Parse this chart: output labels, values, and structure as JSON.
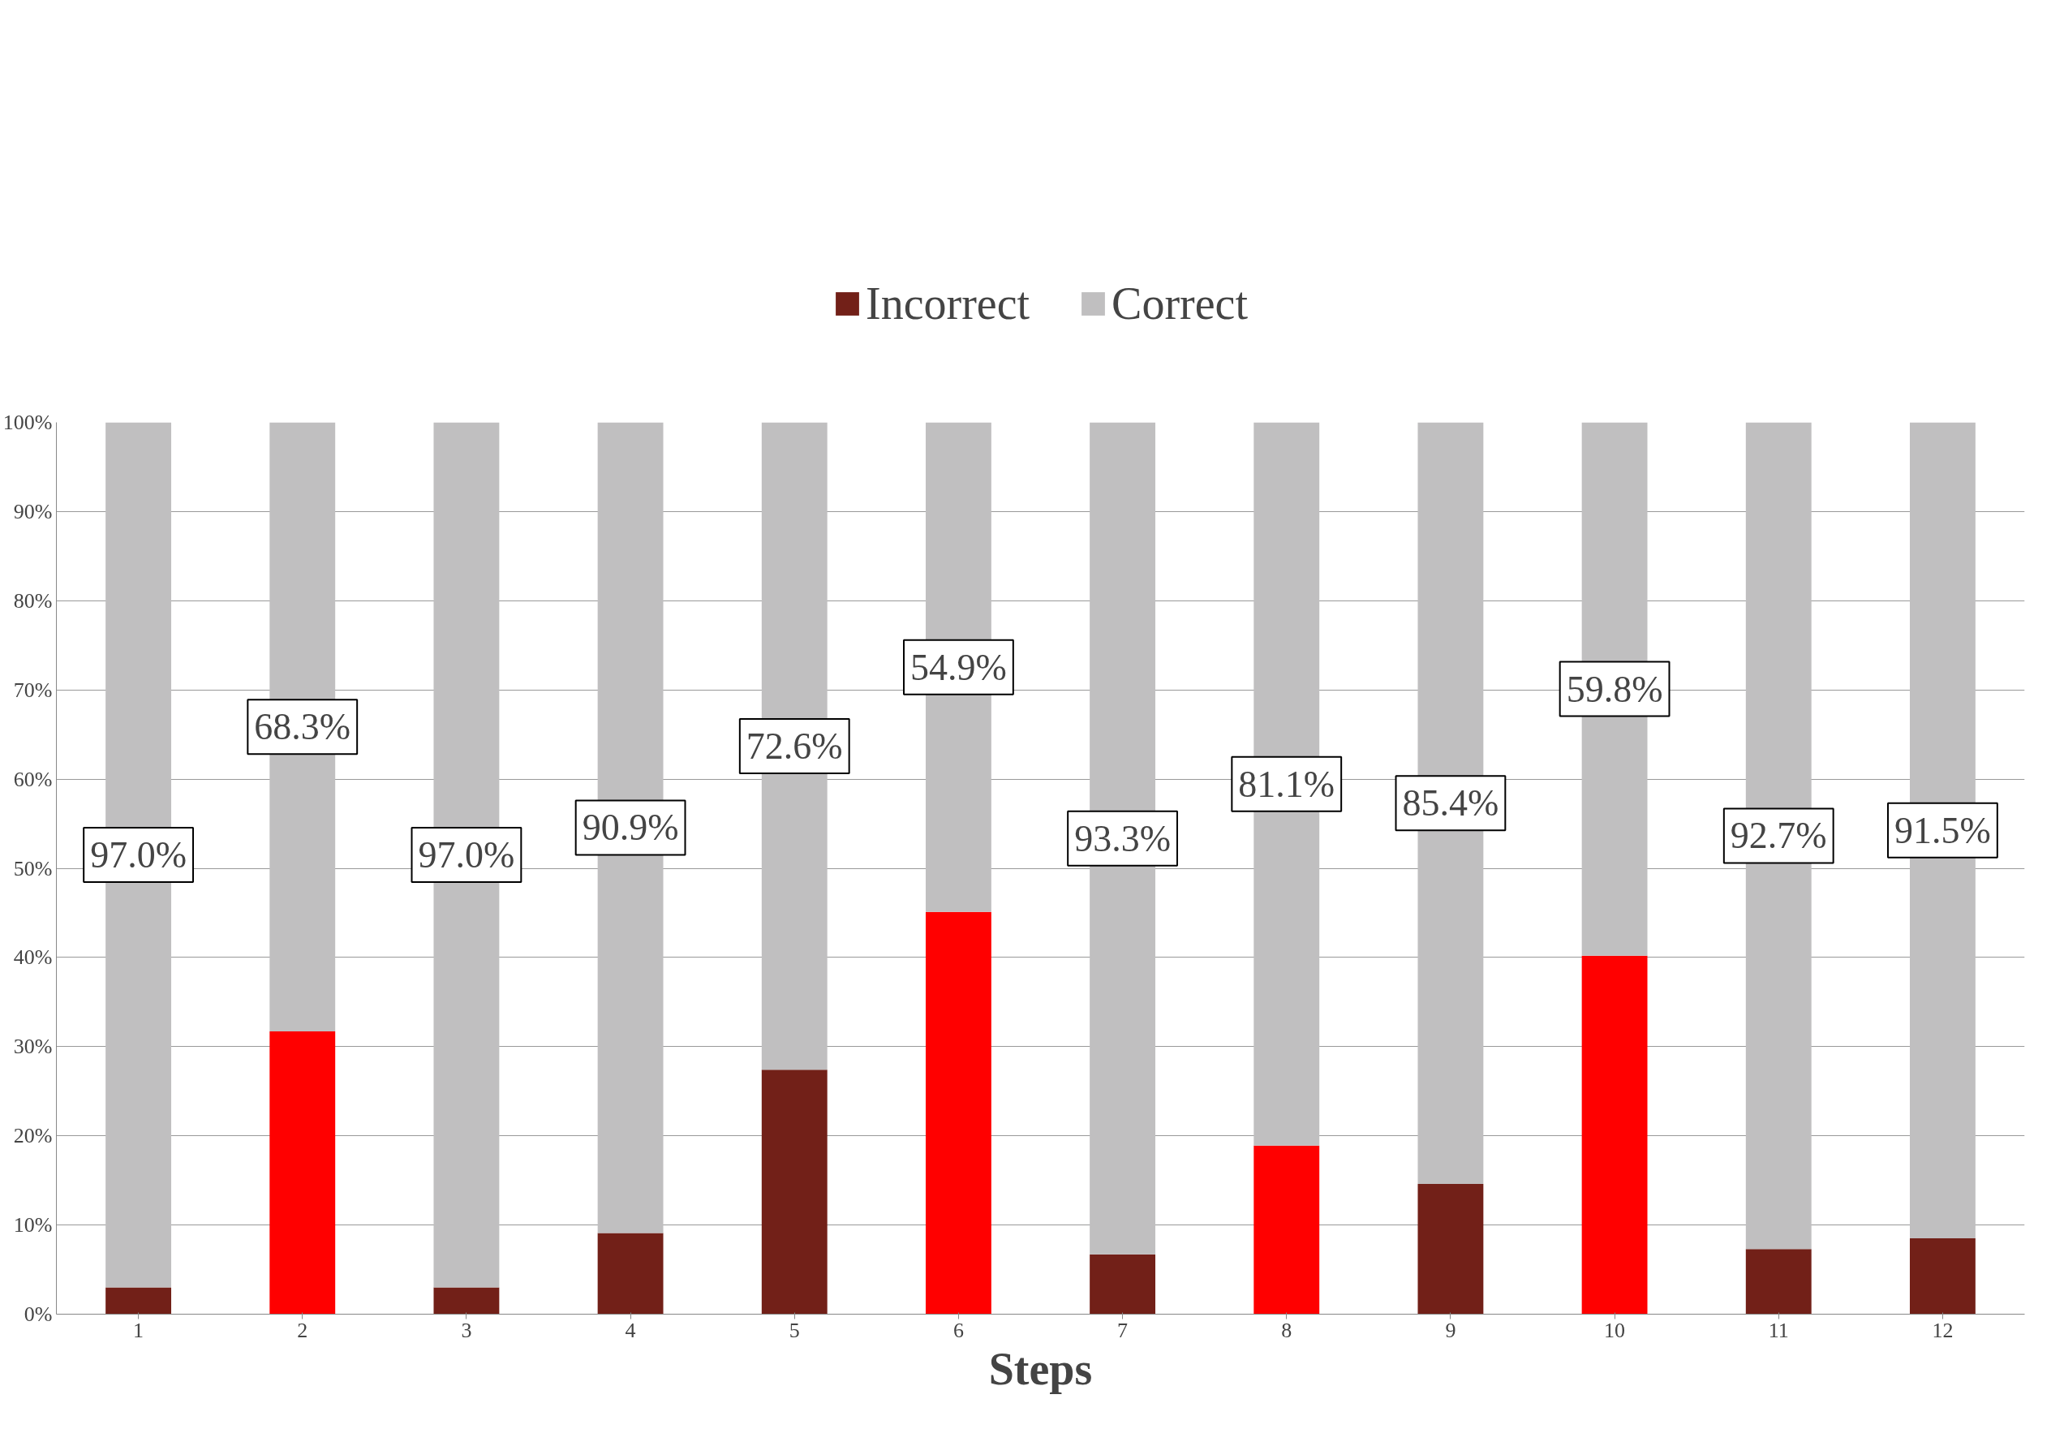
{
  "chart_data": {
    "type": "bar",
    "stacked": true,
    "xlabel": "Steps",
    "categories": [
      "1",
      "2",
      "3",
      "4",
      "5",
      "6",
      "7",
      "8",
      "9",
      "10",
      "11",
      "12"
    ],
    "series": [
      {
        "name": "Incorrect",
        "color": "#722018",
        "colors": [
          "#722018",
          "#ff0000",
          "#722018",
          "#722018",
          "#722018",
          "#ff0000",
          "#722018",
          "#ff0000",
          "#722018",
          "#ff0000",
          "#722018",
          "#722018"
        ],
        "values": [
          3.0,
          31.7,
          3.0,
          9.1,
          27.4,
          45.1,
          6.7,
          18.9,
          14.6,
          40.2,
          7.3,
          8.5
        ]
      },
      {
        "name": "Correct",
        "color": "#c0bfc0",
        "values": [
          97.0,
          68.3,
          97.0,
          90.9,
          72.6,
          54.9,
          93.3,
          81.1,
          85.4,
          59.8,
          92.7,
          91.5
        ],
        "value_labels": [
          "97.0%",
          "68.3%",
          "97.0%",
          "90.9%",
          "72.6%",
          "54.9%",
          "93.3%",
          "81.1%",
          "85.4%",
          "59.8%",
          "92.7%",
          "91.5%"
        ]
      }
    ],
    "ylim": [
      0,
      100
    ],
    "yticks": [
      {
        "value": 0,
        "label": "0%"
      },
      {
        "value": 10,
        "label": "10%"
      },
      {
        "value": 20,
        "label": "20%"
      },
      {
        "value": 30,
        "label": "30%"
      },
      {
        "value": 40,
        "label": "40%"
      },
      {
        "value": 50,
        "label": "50%"
      },
      {
        "value": 60,
        "label": "60%"
      },
      {
        "value": 70,
        "label": "70%"
      },
      {
        "value": 80,
        "label": "80%"
      },
      {
        "value": 90,
        "label": "90%"
      },
      {
        "value": 100,
        "label": "100%"
      }
    ],
    "grid": "y",
    "legend": "top"
  }
}
